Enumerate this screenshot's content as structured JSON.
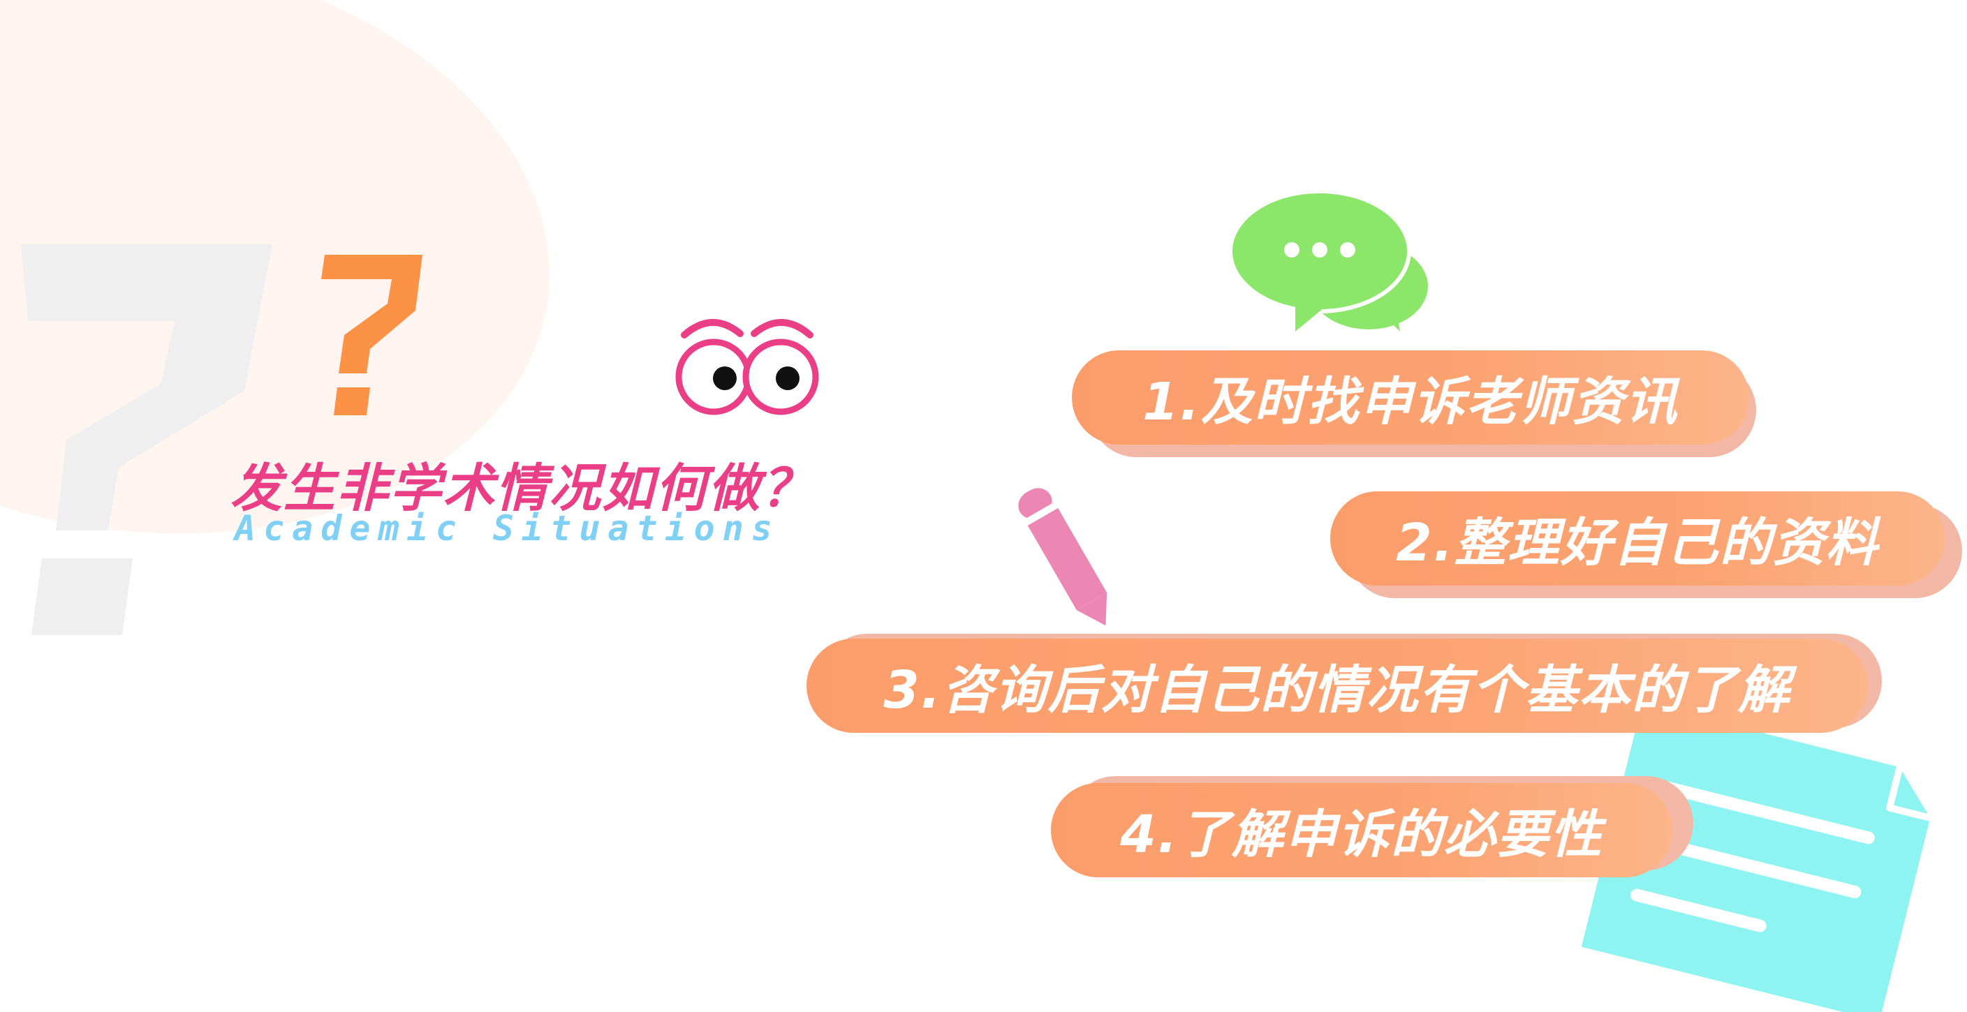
{
  "heading": {
    "title": "发生非学术情况如何做？",
    "subtitle": "Academic Situations"
  },
  "steps": [
    {
      "label": "1.及时找申诉老师资讯"
    },
    {
      "label": "2.整理好自己的资料"
    },
    {
      "label": "3.咨询后对自己的情况有个基本的了解"
    },
    {
      "label": "4.了解申诉的必要性"
    }
  ],
  "colors": {
    "title": "#ea3f86",
    "subtitle": "#7fd0f4",
    "pill": "#fca372",
    "pill_shadow": "#f3b7a5",
    "question_orange": "#fb9246",
    "chat_green": "#8ce66a",
    "pencil_pink": "#ec86b2",
    "doc_cyan": "#8ef4f2"
  },
  "icons": [
    "question-mark-icon",
    "eyes-icon",
    "chat-bubble-icon",
    "pencil-icon",
    "document-icon"
  ]
}
